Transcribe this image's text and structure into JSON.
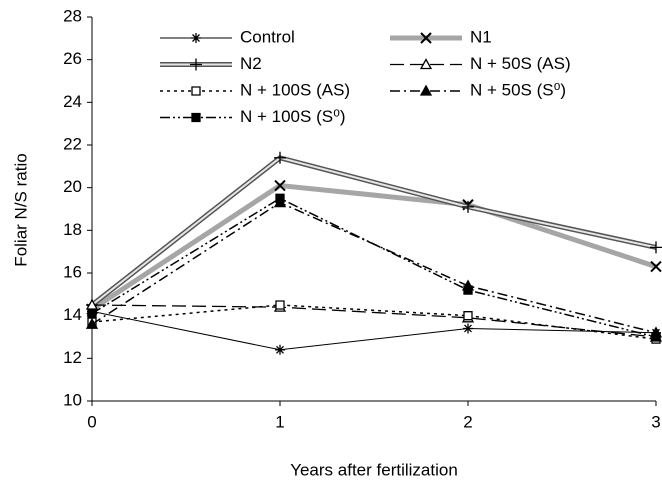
{
  "chart_data": {
    "type": "line",
    "x_label": "Years after fertilization",
    "y_label": "Foliar N/S ratio",
    "x": [
      0,
      1,
      2,
      3
    ],
    "xlim": [
      0,
      3
    ],
    "xticks": [
      0,
      1,
      2,
      3
    ],
    "ylim": [
      10,
      28
    ],
    "yticks": [
      10,
      12,
      14,
      16,
      18,
      20,
      22,
      24,
      26,
      28
    ],
    "grid": false,
    "legend": "top",
    "series": [
      {
        "name": "Control",
        "color": "#000000",
        "style": "solid",
        "width": 1,
        "marker": "asterisk",
        "values": [
          14.2,
          12.4,
          13.4,
          13.2
        ]
      },
      {
        "name": "N1",
        "color": "#a6a6a6",
        "style": "solid",
        "width": 5,
        "marker": "x",
        "values": [
          14.3,
          20.1,
          19.2,
          16.3
        ]
      },
      {
        "name": "N2",
        "color": "#555555",
        "style": "double",
        "width": 5,
        "marker": "plus",
        "values": [
          14.5,
          21.4,
          19.1,
          17.2
        ]
      },
      {
        "name": "N + 50S (AS)",
        "color": "#000000",
        "style": "dashed",
        "width": 1.3,
        "marker": "triangle-open",
        "values": [
          14.5,
          14.4,
          13.9,
          13.0
        ]
      },
      {
        "name": "N + 100S (AS)",
        "color": "#000000",
        "style": "dotted",
        "width": 1.5,
        "marker": "square-open",
        "values": [
          13.7,
          14.5,
          14.0,
          12.9
        ]
      },
      {
        "name": "N + 50S (S⁰)",
        "color": "#000000",
        "style": "dashdot",
        "width": 1.5,
        "marker": "triangle",
        "values": [
          13.6,
          19.3,
          15.4,
          13.2
        ]
      },
      {
        "name": "N + 100S (S⁰)",
        "color": "#000000",
        "style": "dashdotdot",
        "width": 1.5,
        "marker": "square",
        "values": [
          14.1,
          19.5,
          15.2,
          13.0
        ]
      }
    ]
  }
}
